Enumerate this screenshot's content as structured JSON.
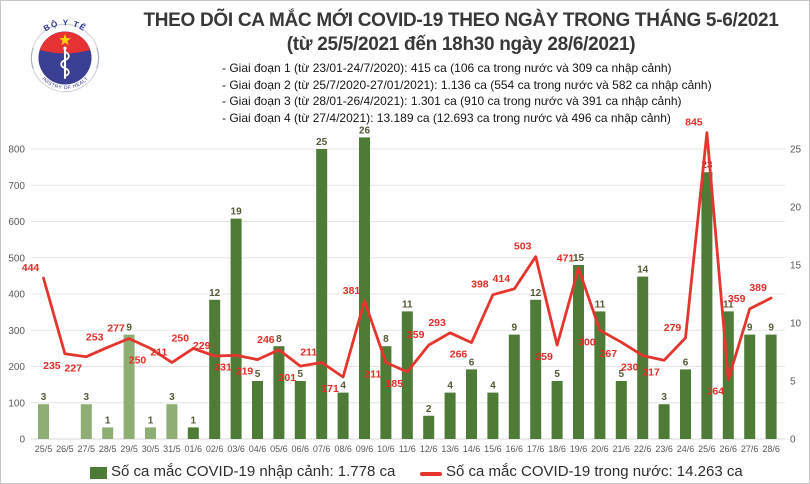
{
  "logo": {
    "top": "BỘ Y TẾ",
    "bottom": "MINISTRY OF HEALTH"
  },
  "header": {
    "title": "THEO DÕI CA MẮC MỚI COVID-19 THEO NGÀY TRONG THÁNG 5-6/2021",
    "subtitle": "(từ 25/5/2021 đến 18h30 ngày 28/6/2021)",
    "phases": [
      "- Giai đoạn 1 (từ 23/01-24/7/2020): 415 ca (106 ca trong nước và 309 ca nhập cảnh)",
      "- Giai đoạn 2 (từ 25/7/2020-27/01/2021): 1.136 ca (554 ca trong nước và 582 ca nhập cảnh)",
      "- Giai đoạn 3 (từ 28/01-26/4/2021): 1.301 ca (910 ca trong nước và 391 ca nhập cảnh)",
      "- Giai đoạn 4 (từ 27/4/2021): 13.189 ca (12.693 ca trong nước và 496 ca nhập cảnh)"
    ]
  },
  "chart_data": {
    "type": "bar+line dual-axis combo",
    "categories": [
      "25/5",
      "26/5",
      "27/5",
      "28/5",
      "29/5",
      "30/5",
      "31/5",
      "01/6",
      "02/6",
      "03/6",
      "04/6",
      "05/6",
      "06/6",
      "07/6",
      "08/6",
      "09/6",
      "10/6",
      "11/6",
      "12/6",
      "13/6",
      "14/6",
      "15/6",
      "16/6",
      "17/6",
      "18/6",
      "19/6",
      "20/6",
      "21/6",
      "22/6",
      "23/6",
      "24/6",
      "25/6",
      "26/6",
      "27/6",
      "28/6"
    ],
    "series": [
      {
        "name": "Số ca mắc COVID-19 nhập cảnh",
        "type": "bar",
        "axis": "right",
        "values": [
          3,
          0,
          3,
          1,
          9,
          1,
          3,
          1,
          12,
          19,
          5,
          8,
          5,
          25,
          4,
          26,
          8,
          11,
          2,
          4,
          6,
          4,
          9,
          12,
          5,
          15,
          11,
          5,
          14,
          3,
          6,
          23,
          11,
          9,
          9
        ]
      },
      {
        "name": "Số ca mắc COVID-19 trong nước",
        "type": "line",
        "axis": "left",
        "values": [
          444,
          235,
          227,
          253,
          277,
          250,
          211,
          250,
          229,
          231,
          219,
          246,
          201,
          211,
          171,
          381,
          211,
          185,
          259,
          293,
          266,
          398,
          414,
          503,
          259,
          471,
          300,
          267,
          230,
          217,
          279,
          845,
          164,
          359,
          389
        ]
      }
    ],
    "left_axis": {
      "range": [
        0,
        800
      ],
      "ticks": [
        0,
        100,
        200,
        300,
        400,
        500,
        600,
        700,
        800
      ]
    },
    "right_axis": {
      "range": [
        0,
        25
      ],
      "ticks": [
        0,
        5,
        10,
        15,
        20,
        25
      ]
    },
    "grid": "horizontal gridlines on",
    "legend_position": "bottom",
    "line_label_side": [
      "a",
      "b",
      "b",
      "a",
      "a",
      "b",
      "a",
      "a",
      "a",
      "b",
      "b",
      "a",
      "b",
      "a",
      "b",
      "a",
      "b",
      "b",
      "a",
      "a",
      "b",
      "a",
      "a",
      "a",
      "b",
      "a",
      "b",
      "b",
      "b",
      "b",
      "a",
      "a",
      "b",
      "a",
      "a"
    ],
    "colors": {
      "bar_may": "#8fae74",
      "bar_june": "#4e7b36",
      "bar_label": "#515c36",
      "line": "#e5352e",
      "line_label": "#e02e27",
      "axis_label": "#595959",
      "gridline": "#e4e4e4"
    }
  },
  "legend": {
    "bar": "Số ca mắc COVID-19 nhập cảnh: 1.778 ca",
    "line": "Số ca mắc COVID-19 trong nước: 14.263 ca"
  }
}
